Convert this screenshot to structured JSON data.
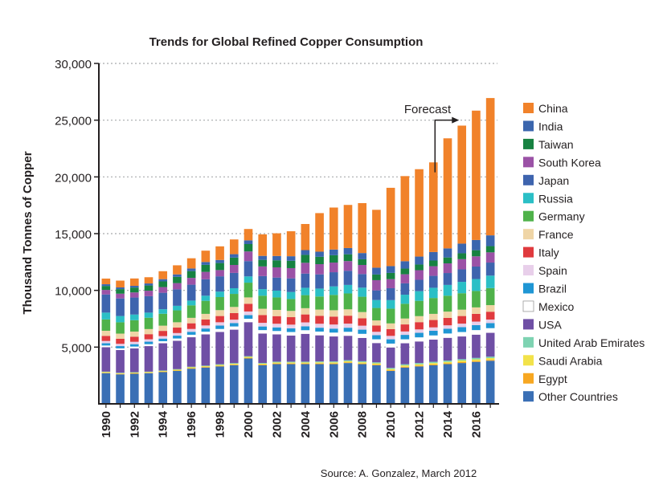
{
  "chart_data": {
    "type": "stacked-bar",
    "title": "Trends for Global Refined Copper Consumption",
    "ylabel": "Thousand Tonnes of Copper",
    "xlabel": "",
    "ylim": [
      0,
      30000
    ],
    "yticks": [
      5000,
      10000,
      15000,
      20000,
      25000,
      30000
    ],
    "ytick_labels": [
      "5,000",
      "10,000",
      "15,000",
      "20,000",
      "25,000",
      "30,000"
    ],
    "grid": true,
    "x": [
      1990,
      1991,
      1992,
      1993,
      1994,
      1995,
      1996,
      1997,
      1998,
      1999,
      2000,
      2001,
      2002,
      2003,
      2004,
      2005,
      2006,
      2007,
      2008,
      2009,
      2010,
      2011,
      2012,
      2013,
      2014,
      2015,
      2016,
      2017
    ],
    "xtick_labels": [
      "1990",
      "1992",
      "1994",
      "1996",
      "1998",
      "2000",
      "2002",
      "2004",
      "2006",
      "2008",
      "2010",
      "2012",
      "2014",
      "2016"
    ],
    "annotation": "Forecast",
    "forecast_from": 2013,
    "forecast_level": 25000,
    "source": "Source: A. Gonzalez, March 2012",
    "legend_position": "right",
    "series": [
      {
        "name": "Other Countries",
        "color": "#3a6fb5",
        "values": [
          2700,
          2600,
          2650,
          2700,
          2800,
          2900,
          3100,
          3200,
          3300,
          3400,
          4000,
          3400,
          3500,
          3500,
          3500,
          3500,
          3500,
          3600,
          3500,
          3400,
          2900,
          3200,
          3300,
          3400,
          3500,
          3600,
          3700,
          3800
        ]
      },
      {
        "name": "Egypt",
        "color": "#f7a721",
        "values": [
          40,
          40,
          40,
          40,
          40,
          40,
          50,
          50,
          50,
          50,
          60,
          60,
          60,
          60,
          60,
          60,
          60,
          60,
          60,
          60,
          60,
          70,
          70,
          70,
          70,
          80,
          80,
          80
        ]
      },
      {
        "name": "Saudi Arabia",
        "color": "#f2e24a",
        "values": [
          60,
          60,
          60,
          60,
          60,
          70,
          70,
          70,
          80,
          80,
          80,
          80,
          90,
          90,
          90,
          100,
          100,
          100,
          110,
          110,
          110,
          120,
          120,
          130,
          130,
          140,
          140,
          150
        ]
      },
      {
        "name": "United Arab Emirates",
        "color": "#7ed3b2",
        "values": [
          40,
          40,
          40,
          40,
          40,
          50,
          50,
          50,
          60,
          60,
          60,
          60,
          70,
          70,
          70,
          80,
          80,
          90,
          90,
          90,
          100,
          100,
          110,
          110,
          120,
          120,
          130,
          130
        ]
      },
      {
        "name": "USA",
        "color": "#6f4fa5",
        "values": [
          2150,
          2000,
          2100,
          2250,
          2400,
          2500,
          2600,
          2750,
          2850,
          2950,
          3000,
          2600,
          2400,
          2300,
          2450,
          2300,
          2200,
          2150,
          2050,
          1700,
          1800,
          1850,
          1900,
          1950,
          2000,
          2000,
          2050,
          2100
        ]
      },
      {
        "name": "Mexico",
        "color": "#ffffff",
        "values": [
          150,
          150,
          160,
          170,
          180,
          200,
          220,
          240,
          260,
          280,
          300,
          300,
          300,
          310,
          320,
          330,
          340,
          350,
          360,
          330,
          340,
          350,
          360,
          370,
          380,
          390,
          400,
          410
        ]
      },
      {
        "name": "Brazil",
        "color": "#1f96d4",
        "values": [
          200,
          200,
          210,
          220,
          230,
          250,
          260,
          280,
          300,
          300,
          320,
          320,
          320,
          320,
          340,
          340,
          350,
          360,
          370,
          360,
          380,
          390,
          400,
          410,
          420,
          430,
          440,
          450
        ]
      },
      {
        "name": "Spain",
        "color": "#e8cfea",
        "values": [
          200,
          200,
          210,
          210,
          220,
          230,
          250,
          270,
          290,
          300,
          320,
          320,
          320,
          330,
          350,
          350,
          360,
          360,
          350,
          300,
          300,
          300,
          300,
          300,
          300,
          310,
          310,
          310
        ]
      },
      {
        "name": "Italy",
        "color": "#e03a3e",
        "values": [
          450,
          450,
          450,
          450,
          460,
          480,
          500,
          520,
          550,
          580,
          680,
          680,
          670,
          660,
          700,
          700,
          700,
          700,
          650,
          550,
          600,
          620,
          640,
          650,
          660,
          670,
          680,
          690
        ]
      },
      {
        "name": "France",
        "color": "#efd5a6",
        "values": [
          450,
          450,
          450,
          450,
          460,
          470,
          480,
          500,
          520,
          540,
          560,
          560,
          550,
          550,
          550,
          550,
          560,
          560,
          550,
          450,
          500,
          520,
          530,
          540,
          550,
          560,
          570,
          580
        ]
      },
      {
        "name": "Germany",
        "color": "#4fb24a",
        "values": [
          1000,
          1000,
          1000,
          1000,
          1050,
          1050,
          1100,
          1150,
          1150,
          1150,
          1300,
          1150,
          1100,
          1050,
          1150,
          1150,
          1350,
          1400,
          1350,
          1100,
          1300,
          1300,
          1350,
          1400,
          1400,
          1450,
          1450,
          1500
        ]
      },
      {
        "name": "Russia",
        "color": "#2bbfc6",
        "values": [
          600,
          550,
          500,
          450,
          400,
          400,
          420,
          450,
          480,
          500,
          550,
          580,
          600,
          620,
          650,
          700,
          750,
          750,
          800,
          700,
          750,
          800,
          850,
          900,
          950,
          1000,
          1050,
          1100
        ]
      },
      {
        "name": "Japan",
        "color": "#3e64ae",
        "values": [
          1600,
          1550,
          1500,
          1450,
          1450,
          1450,
          1400,
          1450,
          1350,
          1350,
          1350,
          1150,
          1150,
          1200,
          1250,
          1250,
          1250,
          1250,
          1200,
          850,
          1050,
          1000,
          1000,
          1050,
          1050,
          1100,
          1100,
          1150
        ]
      },
      {
        "name": "South Korea",
        "color": "#9b52a6",
        "values": [
          400,
          420,
          450,
          480,
          500,
          550,
          600,
          650,
          550,
          700,
          850,
          850,
          900,
          900,
          950,
          900,
          850,
          850,
          800,
          900,
          800,
          800,
          850,
          850,
          850,
          900,
          900,
          900
        ]
      },
      {
        "name": "Taiwan",
        "color": "#178241",
        "values": [
          350,
          400,
          430,
          460,
          500,
          550,
          600,
          620,
          620,
          650,
          650,
          580,
          620,
          650,
          700,
          650,
          650,
          600,
          500,
          500,
          550,
          500,
          500,
          500,
          520,
          520,
          540,
          550
        ]
      },
      {
        "name": "India",
        "color": "#3b66ae",
        "values": [
          150,
          150,
          150,
          180,
          200,
          220,
          230,
          250,
          270,
          300,
          330,
          350,
          380,
          400,
          420,
          450,
          500,
          550,
          550,
          600,
          600,
          650,
          700,
          750,
          800,
          850,
          900,
          950
        ]
      },
      {
        "name": "China",
        "color": "#f1822a",
        "values": [
          500,
          600,
          650,
          550,
          700,
          800,
          900,
          1000,
          1200,
          1300,
          1000,
          1900,
          2000,
          2200,
          2300,
          3400,
          3700,
          3800,
          4400,
          5100,
          6900,
          7500,
          7700,
          7900,
          9700,
          10400,
          11400,
          12100
        ]
      }
    ]
  }
}
